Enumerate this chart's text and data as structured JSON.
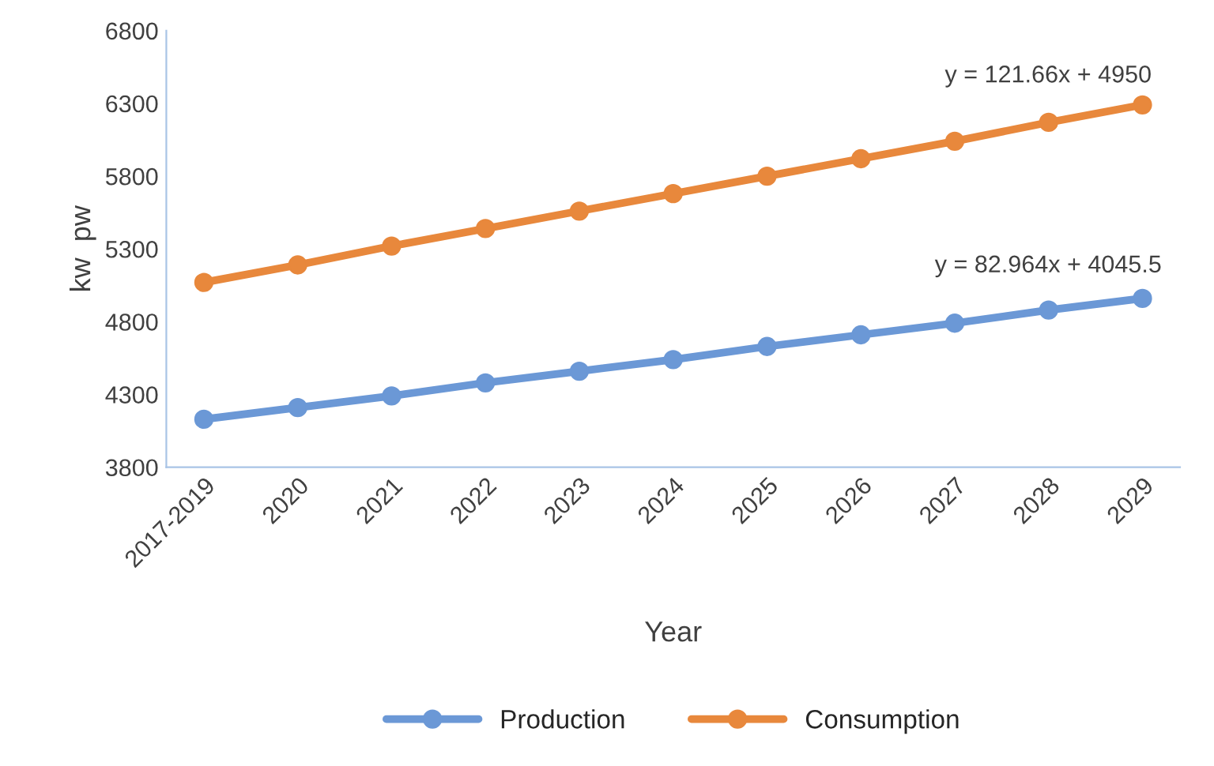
{
  "chart_data": {
    "type": "line",
    "xlabel": "Year",
    "ylabel": "kw  pw",
    "categories": [
      "2017-2019",
      "2020",
      "2021",
      "2022",
      "2023",
      "2024",
      "2025",
      "2026",
      "2027",
      "2028",
      "2029"
    ],
    "series": [
      {
        "name": "Production",
        "color": "#6b98d6",
        "values": [
          4130,
          4210,
          4290,
          4380,
          4460,
          4540,
          4630,
          4710,
          4790,
          4880,
          4960
        ]
      },
      {
        "name": "Consumption",
        "color": "#e8883c",
        "values": [
          5070,
          5190,
          5320,
          5440,
          5560,
          5680,
          5800,
          5920,
          6040,
          6170,
          6290
        ]
      }
    ],
    "ylim": [
      3800,
      6800
    ],
    "yticks": [
      3800,
      4300,
      4800,
      5300,
      5800,
      6300,
      6800
    ],
    "annotations": [
      "y = 121.66x + 4950",
      "y = 82.964x + 4045.5"
    ],
    "marker": "circle",
    "line_style": "solid",
    "grid": false,
    "legend": "bottom"
  }
}
